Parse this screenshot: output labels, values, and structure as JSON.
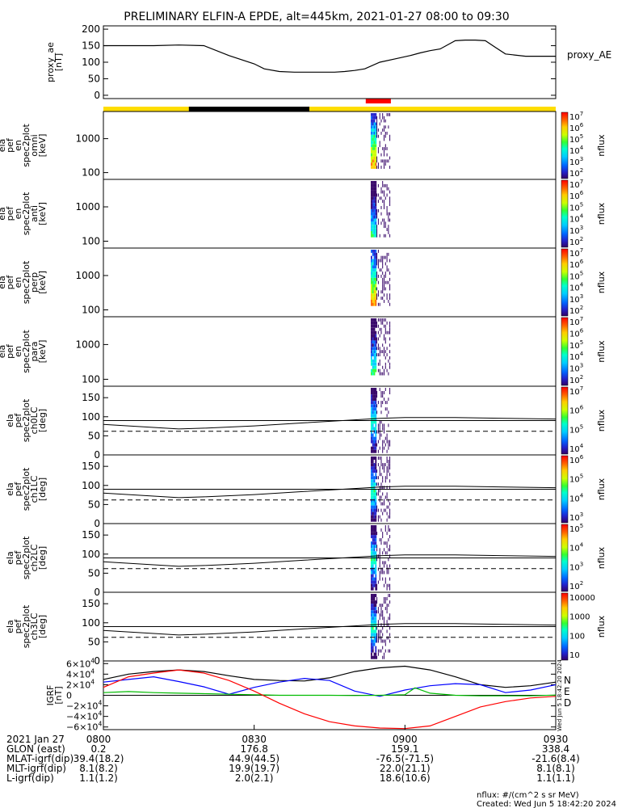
{
  "title": "PRELIMINARY ELFIN-A EPDE, alt=445km, 2021-01-27 08:00 to 09:30",
  "colors": {
    "yellow": "#ffdd00",
    "black": "#000000",
    "red": "#ff0000",
    "cbar": [
      "#ff0000",
      "#ff6600",
      "#ffcc00",
      "#ccff00",
      "#33ff33",
      "#00ffcc",
      "#00ccff",
      "#0066ff",
      "#2222cc",
      "#330066"
    ],
    "blue": "#0000ff",
    "green": "#00bb00"
  },
  "time_axis": {
    "start_min": 0,
    "end_min": 90,
    "ticks": [
      {
        "t": 0,
        "label": "0800"
      },
      {
        "t": 30,
        "label": "0830"
      },
      {
        "t": 60,
        "label": "0900"
      },
      {
        "t": 90,
        "label": "0930"
      }
    ]
  },
  "status_bars": [
    {
      "t0": 0,
      "t1": 17,
      "color": "yellow"
    },
    {
      "t0": 17,
      "t1": 41,
      "color": "black"
    },
    {
      "t0": 41,
      "t1": 90,
      "color": "yellow"
    }
  ],
  "science_bar": {
    "t0": 52.2,
    "t1": 57.2,
    "color": "red"
  },
  "chart_data": [
    {
      "id": "proxy_ae",
      "type": "line",
      "ylabel": [
        "proxy_ae",
        "[nT]"
      ],
      "legend": "proxy_AE",
      "ylim": [
        -10,
        210
      ],
      "yticks": [
        0,
        50,
        100,
        150,
        200
      ],
      "series": [
        {
          "name": "proxy_AE",
          "color": "#000000",
          "x": [
            0,
            5,
            10,
            15,
            20,
            25,
            30,
            32,
            35,
            38,
            42,
            46,
            48,
            50,
            52,
            55,
            58,
            61,
            63,
            65,
            67,
            70,
            72,
            74,
            76,
            78,
            80,
            84,
            90
          ],
          "y": [
            150,
            150,
            150,
            152,
            150,
            120,
            95,
            80,
            72,
            70,
            70,
            70,
            72,
            75,
            80,
            100,
            110,
            120,
            128,
            135,
            140,
            165,
            167,
            167,
            165,
            145,
            125,
            118,
            118
          ]
        }
      ]
    },
    {
      "id": "omni",
      "type": "spectrogram",
      "ylabel": [
        "ela",
        "pef",
        "en",
        "spec2plot",
        "omni",
        "[keV]"
      ],
      "ytick_labels": [
        "100",
        "1000"
      ],
      "cbar_labels": [
        "10^2",
        "10^3",
        "10^4",
        "10^5",
        "10^6",
        "10^7"
      ],
      "cbar_title": "nflux"
    },
    {
      "id": "anti",
      "type": "spectrogram",
      "ylabel": [
        "ela",
        "pef",
        "en",
        "spec2plot",
        "anti",
        "[keV]"
      ],
      "ytick_labels": [
        "100",
        "1000"
      ],
      "cbar_labels": [
        "10^2",
        "10^3",
        "10^4",
        "10^5",
        "10^6",
        "10^7"
      ],
      "cbar_title": "nflux"
    },
    {
      "id": "perp",
      "type": "spectrogram",
      "ylabel": [
        "ela",
        "pef",
        "en",
        "spec2plot",
        "perp",
        "[keV]"
      ],
      "ytick_labels": [
        "100",
        "1000"
      ],
      "cbar_labels": [
        "10^2",
        "10^3",
        "10^4",
        "10^5",
        "10^6",
        "10^7"
      ],
      "cbar_title": "nflux"
    },
    {
      "id": "para",
      "type": "spectrogram",
      "ylabel": [
        "ela",
        "pef",
        "en",
        "spec2plot",
        "para",
        "[keV]"
      ],
      "ytick_labels": [
        "100",
        "1000"
      ],
      "cbar_labels": [
        "10^2",
        "10^3",
        "10^4",
        "10^5",
        "10^6",
        "10^7"
      ],
      "cbar_title": "nflux"
    },
    {
      "id": "ch0LC",
      "type": "pitch-angle",
      "ylabel": [
        "ela",
        "pef",
        "spec2plot",
        "ch0LC",
        "[deg]"
      ],
      "ytick_labels": [
        "0",
        "50",
        "100",
        "150"
      ],
      "cbar_labels": [
        "10^4",
        "10^5",
        "10^6",
        "10^7"
      ],
      "cbar_title": "nflux"
    },
    {
      "id": "ch1LC",
      "type": "pitch-angle",
      "ylabel": [
        "ela",
        "pef",
        "spec2plot",
        "ch1LC",
        "[deg]"
      ],
      "ytick_labels": [
        "0",
        "50",
        "100",
        "150"
      ],
      "cbar_labels": [
        "10^3",
        "10^4",
        "10^5",
        "10^6"
      ],
      "cbar_title": "nflux"
    },
    {
      "id": "ch2LC",
      "type": "pitch-angle",
      "ylabel": [
        "ela",
        "pef",
        "spec2plot",
        "ch2LC",
        "[deg]"
      ],
      "ytick_labels": [
        "0",
        "50",
        "100",
        "150"
      ],
      "cbar_labels": [
        "10^2",
        "10^3",
        "10^4",
        "10^5"
      ],
      "cbar_title": "nflux"
    },
    {
      "id": "ch3LC",
      "type": "pitch-angle",
      "ylabel": [
        "ela",
        "pef",
        "spec2plot",
        "ch3LC",
        "[deg]"
      ],
      "ytick_labels": [
        "0",
        "50",
        "100",
        "150"
      ],
      "cbar_labels": [
        "10",
        "100",
        "1000",
        "10000"
      ],
      "cbar_title": "nflux"
    },
    {
      "id": "igrf",
      "type": "line",
      "ylabel": [
        "IGRF",
        "[nT]"
      ],
      "ylim": [
        -65000,
        65000
      ],
      "yticks": [
        -60000,
        -40000,
        -20000,
        0,
        20000,
        40000,
        60000
      ],
      "ytick_labels": [
        "−6×10^4",
        "−4×10^4",
        "−2×10^4",
        "0",
        "2×10^4",
        "4×10^4",
        "6×10^4"
      ],
      "legend": [
        "N",
        "E",
        "D"
      ],
      "series": [
        {
          "name": "N",
          "color": "#000000",
          "x": [
            0,
            5,
            10,
            15,
            20,
            25,
            30,
            35,
            40,
            45,
            50,
            55,
            60,
            65,
            70,
            75,
            80,
            85,
            90
          ],
          "y": [
            30000,
            40000,
            45000,
            48000,
            45000,
            37000,
            30000,
            28000,
            27000,
            33000,
            45000,
            52000,
            55000,
            48000,
            35000,
            20000,
            15000,
            18000,
            25000
          ]
        },
        {
          "name": "E",
          "color": "#0000ff",
          "x": [
            0,
            5,
            10,
            15,
            20,
            25,
            30,
            35,
            40,
            45,
            50,
            55,
            60,
            65,
            70,
            75,
            80,
            85,
            90
          ],
          "y": [
            25000,
            30000,
            35000,
            26000,
            16000,
            2000,
            15000,
            25000,
            32000,
            28000,
            8000,
            -2000,
            10000,
            18000,
            22000,
            20000,
            5000,
            10000,
            20000
          ]
        },
        {
          "name": "D",
          "color": "#00bb00",
          "x": [
            0,
            5,
            10,
            15,
            20,
            25,
            30,
            35,
            40,
            45,
            50,
            55,
            60,
            62,
            65,
            70,
            75,
            80,
            85,
            90
          ],
          "y": [
            5000,
            7000,
            5000,
            4000,
            3000,
            2000,
            1000,
            0,
            0,
            0,
            -500,
            0,
            1000,
            14000,
            4000,
            0,
            -1000,
            -1000,
            -1000,
            500
          ]
        },
        {
          "name": "D_red",
          "color": "#ff0000",
          "x": [
            0,
            5,
            10,
            15,
            20,
            25,
            30,
            35,
            40,
            45,
            50,
            55,
            60,
            65,
            70,
            75,
            80,
            85,
            90
          ],
          "y": [
            15000,
            35000,
            42000,
            48000,
            42000,
            28000,
            8000,
            -15000,
            -35000,
            -50000,
            -58000,
            -62000,
            -63000,
            -58000,
            -40000,
            -22000,
            -12000,
            -5000,
            -2000
          ]
        }
      ]
    }
  ],
  "ephemeris": [
    {
      "label": "2021 Jan 27",
      "values": [
        "0800",
        "0830",
        "0900",
        "0930"
      ]
    },
    {
      "label": "GLON (east)",
      "values": [
        "0.2",
        "176.8",
        "159.1",
        "338.4"
      ]
    },
    {
      "label": "MLAT-igrf(dip)",
      "values": [
        "39.4(18.2)",
        "44.9(44.5)",
        "-76.5(-71.5)",
        "-21.6(8.4)"
      ]
    },
    {
      "label": "MLT-igrf(dip)",
      "values": [
        "8.1(8.2)",
        "19.9(19.7)",
        "22.0(21.1)",
        "8.1(8.1)"
      ]
    },
    {
      "label": "L-igrf(dip)",
      "values": [
        "1.1(1.2)",
        "2.0(2.1)",
        "18.6(10.6)",
        "1.1(1.1)"
      ]
    }
  ],
  "footer": {
    "units": "nflux: #/(cm^2 s sr MeV)",
    "created": "Created: Wed Jun  5 18:42:20 2024",
    "stamp": "Wed Jun  5 18:42:20 2024"
  }
}
